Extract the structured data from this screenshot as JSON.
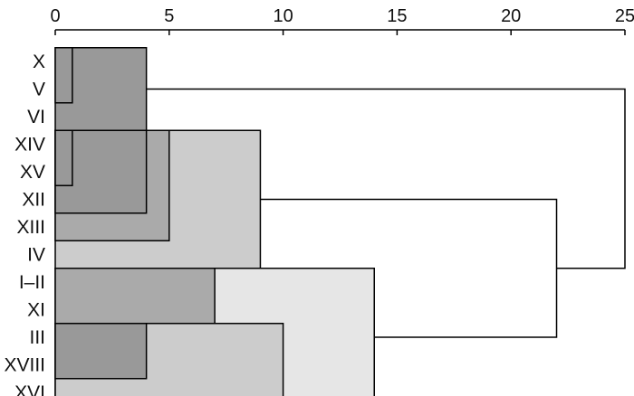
{
  "chart_data": {
    "type": "dendrogram",
    "xlim": [
      0,
      25
    ],
    "x_ticks": [
      "0",
      "5",
      "10",
      "15",
      "20",
      "25"
    ],
    "leaves": [
      "X",
      "V",
      "VI",
      "XIV",
      "XV",
      "XII",
      "XIII",
      "IV",
      "I–II",
      "XI",
      "III",
      "XVIII",
      "XVI"
    ],
    "merges": [
      {
        "distance": 0.75,
        "members": [
          "X",
          "V"
        ]
      },
      {
        "distance": 4,
        "members": [
          "X",
          "V",
          "VI"
        ]
      },
      {
        "distance": 0.75,
        "members": [
          "XIV",
          "XV"
        ]
      },
      {
        "distance": 4,
        "members": [
          "XIV",
          "XV",
          "XII"
        ]
      },
      {
        "distance": 5,
        "members": [
          "XIV",
          "XV",
          "XII",
          "XIII"
        ]
      },
      {
        "distance": 9,
        "members": [
          "XIV",
          "XV",
          "XII",
          "XIII",
          "IV"
        ]
      },
      {
        "distance": 7,
        "members": [
          "I–II",
          "XI"
        ]
      },
      {
        "distance": 4,
        "members": [
          "III",
          "XVIII"
        ]
      },
      {
        "distance": 10,
        "members": [
          "III",
          "XVIII",
          "XVI"
        ]
      },
      {
        "distance": 14,
        "members": [
          "I–II",
          "XI",
          "III",
          "XVIII",
          "XVI"
        ]
      },
      {
        "distance": 22,
        "members": [
          "XIV",
          "XV",
          "XII",
          "XIII",
          "IV",
          "I–II",
          "XI",
          "III",
          "XVIII",
          "XVI"
        ]
      },
      {
        "distance": 25,
        "members": [
          "X",
          "V",
          "VI",
          "XIV",
          "XV",
          "XII",
          "XIII",
          "IV",
          "I–II",
          "XI",
          "III",
          "XVIII",
          "XVI"
        ]
      }
    ],
    "colors": {
      "line": "#000000",
      "shade_dark": "#999999",
      "shade_mid": "#aaaaaa",
      "shade_light": "#cccccc",
      "shade_lightest": "#e6e6e6"
    }
  }
}
